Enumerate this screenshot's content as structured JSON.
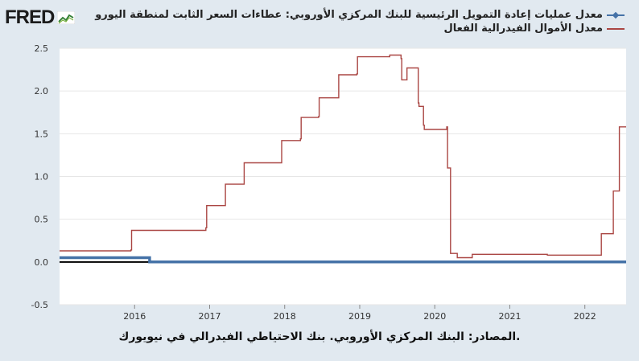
{
  "brand": {
    "logo_text": "FRED"
  },
  "legend": [
    {
      "label": "معدل عمليات إعادة التمويل الرئيسية للبنك المركزي الأوروبي: عطاءات السعر الثابت لمنطقة اليورو",
      "color": "#4572a7"
    },
    {
      "label": "معدل الأموال الفيدرالية الفعال",
      "color": "#aa4643"
    }
  ],
  "source_note": ".المصادر: البنك المركزي الأوروبي. بنك الاحتياطي الفيدرالي في نيويورك",
  "chart_data": {
    "type": "line",
    "title": "",
    "xlabel": "",
    "ylabel": "",
    "xlim": [
      2015.0,
      2022.55
    ],
    "ylim": [
      -0.5,
      2.5
    ],
    "y_ticks": [
      "-0.5",
      "0.0",
      "0.5",
      "1.0",
      "1.5",
      "2.0",
      "2.5"
    ],
    "x_ticks": [
      "2016",
      "2017",
      "2018",
      "2019",
      "2020",
      "2021",
      "2022"
    ],
    "grid": true,
    "background": "#ffffff",
    "series": [
      {
        "name": "معدل عمليات إعادة التمويل الرئيسية للبنك المركزي الأوروبي: عطاءات السعر الثابت لمنطقة اليورو",
        "color": "#4572a7",
        "x": [
          2015.0,
          2016.2,
          2016.2,
          2022.55
        ],
        "y": [
          0.05,
          0.05,
          0.0,
          0.0
        ]
      },
      {
        "name": "معدل الأموال الفيدرالية الفعال",
        "color": "#aa4643",
        "x": [
          2015.0,
          2015.95,
          2015.96,
          2016.95,
          2016.96,
          2017.2,
          2017.21,
          2017.45,
          2017.46,
          2017.95,
          2017.96,
          2018.21,
          2018.22,
          2018.45,
          2018.46,
          2018.71,
          2018.72,
          2018.96,
          2018.97,
          2019.4,
          2019.55,
          2019.56,
          2019.62,
          2019.63,
          2019.78,
          2019.79,
          2019.85,
          2019.86,
          2020.16,
          2020.17,
          2020.2,
          2020.21,
          2020.3,
          2020.5,
          2021.0,
          2021.5,
          2022.0,
          2022.21,
          2022.22,
          2022.37,
          2022.38,
          2022.45,
          2022.46,
          2022.55
        ],
        "y": [
          0.13,
          0.14,
          0.37,
          0.4,
          0.66,
          0.66,
          0.91,
          0.91,
          1.16,
          1.16,
          1.42,
          1.44,
          1.69,
          1.7,
          1.92,
          1.92,
          2.19,
          2.2,
          2.4,
          2.42,
          2.38,
          2.13,
          2.13,
          2.27,
          1.86,
          1.82,
          1.6,
          1.55,
          1.58,
          1.1,
          1.1,
          0.1,
          0.05,
          0.09,
          0.09,
          0.08,
          0.08,
          0.08,
          0.33,
          0.33,
          0.83,
          0.83,
          1.58,
          1.58
        ]
      }
    ]
  }
}
